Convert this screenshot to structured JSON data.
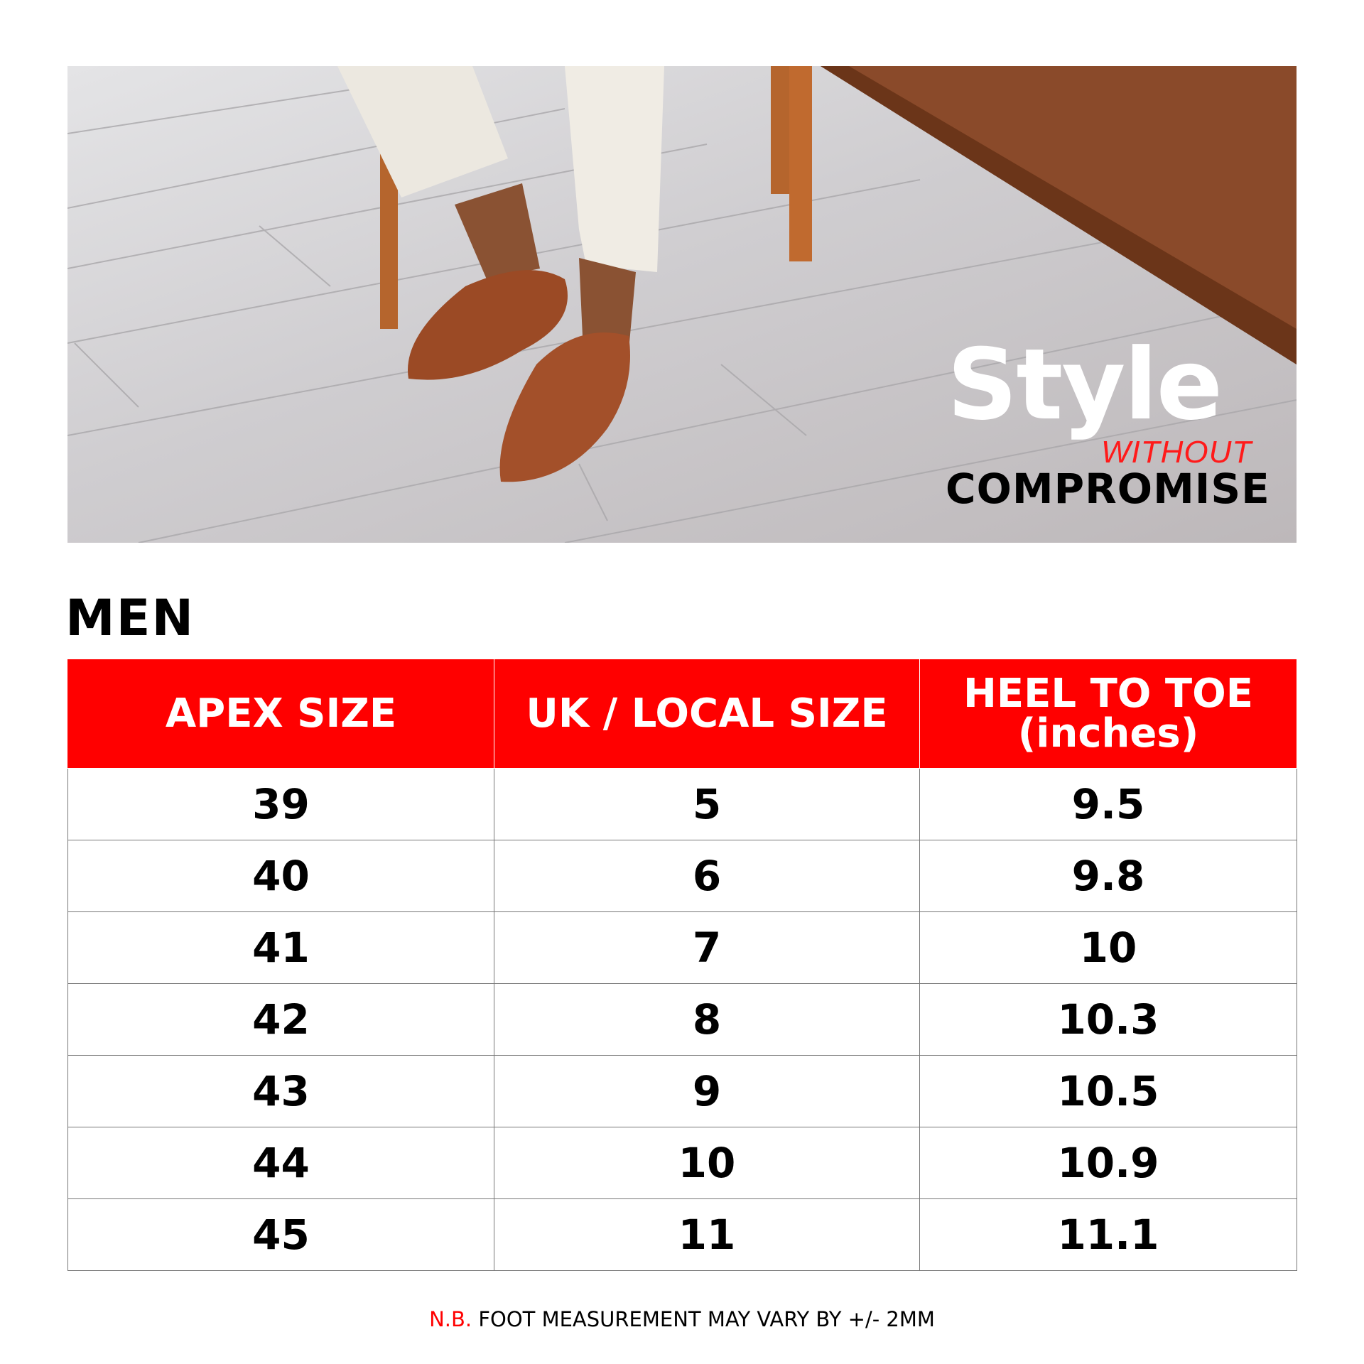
{
  "hero": {
    "headline": "Style",
    "subline_accent": "WITHOUT",
    "subline": "COMPROMISE",
    "accent_color": "#ff0000"
  },
  "section_title": "MEN",
  "table": {
    "header_color": "#ff0000",
    "columns": [
      "APEX SIZE",
      "UK / LOCAL SIZE",
      "HEEL TO TOE (inches)"
    ],
    "rows": [
      [
        "39",
        "5",
        "9.5"
      ],
      [
        "40",
        "6",
        "9.8"
      ],
      [
        "41",
        "7",
        "10"
      ],
      [
        "42",
        "8",
        "10.3"
      ],
      [
        "43",
        "9",
        "10.5"
      ],
      [
        "44",
        "10",
        "10.9"
      ],
      [
        "45",
        "11",
        "11.1"
      ]
    ]
  },
  "footer": {
    "prefix": "N.B.",
    "text": "FOOT MEASUREMENT MAY VARY BY +/- 2MM"
  }
}
